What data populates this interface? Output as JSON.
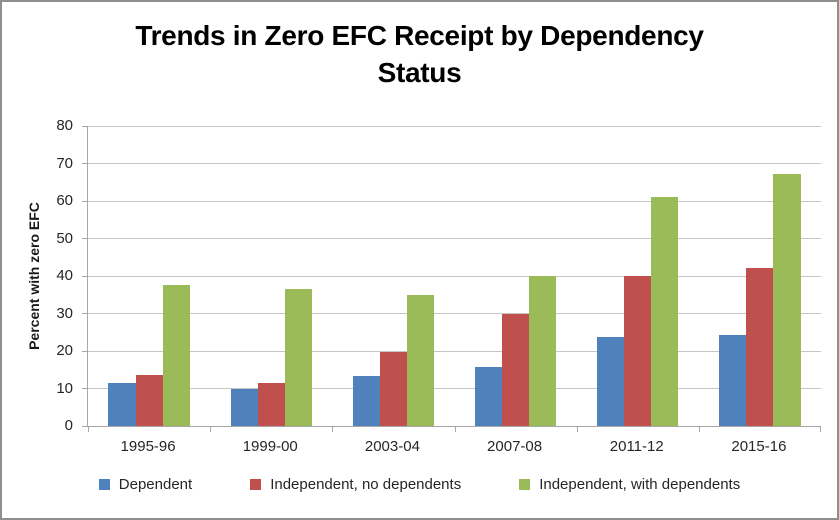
{
  "frame": {
    "background_color": "#ffffff",
    "border_color": "#8e8e8e"
  },
  "chart_data": {
    "type": "bar",
    "title": "Trends in Zero EFC Receipt by Dependency Status",
    "xlabel": "",
    "ylabel": "Percent with zero EFC",
    "ylim": [
      0,
      80
    ],
    "yticks": [
      0,
      10,
      20,
      30,
      40,
      50,
      60,
      70,
      80
    ],
    "grid": true,
    "legend_position": "bottom",
    "categories": [
      "1995-96",
      "1999-00",
      "2003-04",
      "2007-08",
      "2011-12",
      "2015-16"
    ],
    "series": [
      {
        "name": "Dependent",
        "color": "#4F81BD",
        "values": [
          11.6,
          10.0,
          13.4,
          15.7,
          23.7,
          24.2
        ]
      },
      {
        "name": "Independent, no dependents",
        "color": "#C0504D",
        "values": [
          13.7,
          11.6,
          19.7,
          30.0,
          40.0,
          42.2
        ]
      },
      {
        "name": "Independent, with dependents",
        "color": "#9BBB59",
        "values": [
          37.6,
          36.6,
          34.9,
          40.0,
          61.0,
          67.3
        ]
      }
    ],
    "axis_colors": {
      "axis_line": "#a6a6a6",
      "gridline": "#c6c6c6",
      "tick_label": "#262626"
    }
  }
}
